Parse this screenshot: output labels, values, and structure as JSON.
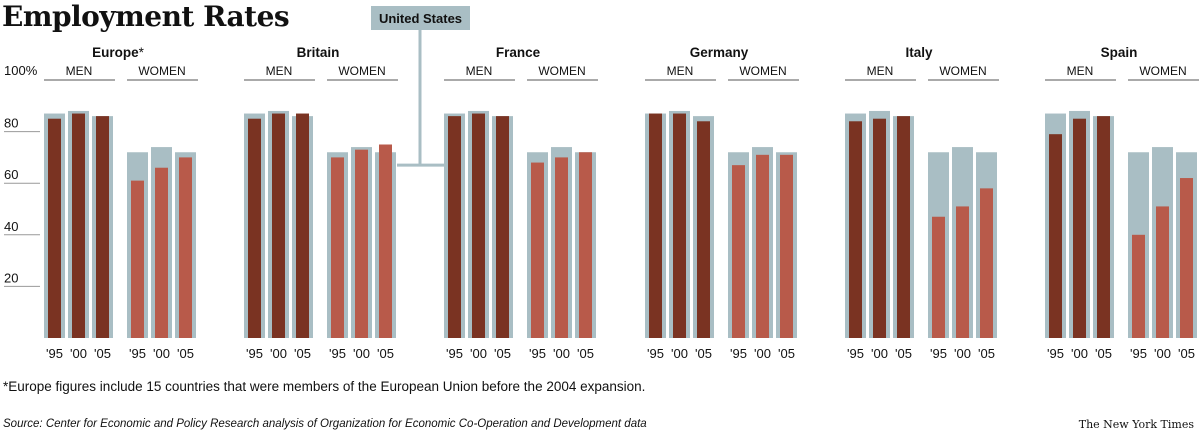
{
  "title": "Employment Rates",
  "footnote": "*Europe figures include 15 countries that were members of the European Union before the 2004 expansion.",
  "source": "Source: Center for Economic and Policy Research analysis of Organization for Economic Co-Operation and Development data",
  "credit": "The New York Times",
  "chart_data": {
    "type": "bar",
    "us_label": "United States",
    "men_label": "MEN",
    "women_label": "WOMEN",
    "y_ticks": [
      "100%",
      "80",
      "60",
      "40",
      "20"
    ],
    "ylim": [
      0,
      100
    ],
    "years": [
      "'95",
      "'00",
      "'05"
    ],
    "colors": {
      "us_background": "#a9bec4",
      "men": "#7a3322",
      "women": "#b85a4a",
      "axis": "#999999"
    },
    "us_values": {
      "men": [
        87,
        88,
        86
      ],
      "women": [
        72,
        74,
        72
      ]
    },
    "groups": [
      {
        "name": "Europe",
        "asterisk": "*",
        "men": [
          85,
          87,
          86
        ],
        "women": [
          61,
          66,
          70
        ]
      },
      {
        "name": "Britain",
        "men": [
          85,
          87,
          87
        ],
        "women": [
          70,
          73,
          75
        ]
      },
      {
        "name": "France",
        "men": [
          86,
          87,
          86
        ],
        "women": [
          68,
          70,
          72
        ]
      },
      {
        "name": "Germany",
        "men": [
          87,
          87,
          84
        ],
        "women": [
          67,
          71,
          71
        ]
      },
      {
        "name": "Italy",
        "men": [
          84,
          85,
          86
        ],
        "women": [
          47,
          51,
          58
        ]
      },
      {
        "name": "Spain",
        "men": [
          79,
          85,
          86
        ],
        "women": [
          40,
          51,
          62
        ]
      }
    ]
  }
}
